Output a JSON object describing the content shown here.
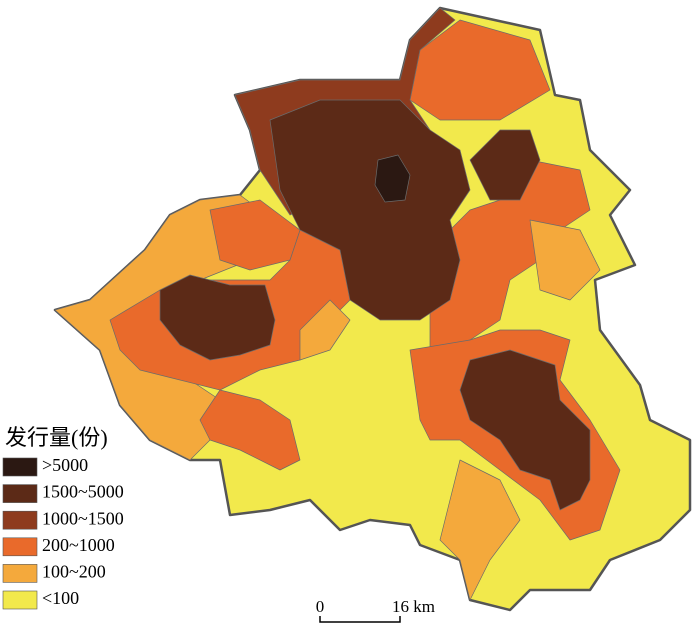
{
  "legend": {
    "title": "发行量(份)",
    "items": [
      {
        "label": ">5000",
        "color": "#2b1812"
      },
      {
        "label": "1500~5000",
        "color": "#5c2a17"
      },
      {
        "label": "1000~1500",
        "color": "#8e3b1e"
      },
      {
        "label": "200~1000",
        "color": "#e96a2b"
      },
      {
        "label": "100~200",
        "color": "#f4a93c"
      },
      {
        "label": "<100",
        "color": "#f2e94c"
      }
    ]
  },
  "scale_bar": {
    "start": "0",
    "end": "16 km"
  }
}
